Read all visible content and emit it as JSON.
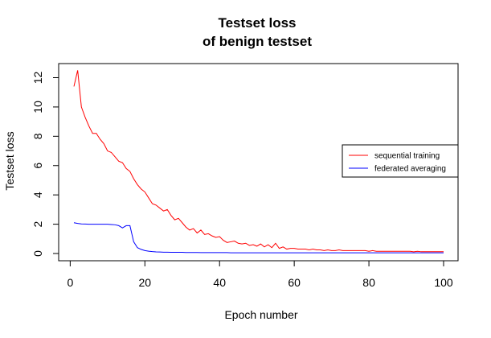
{
  "chart_data": {
    "type": "line",
    "title": "Testset loss",
    "subtitle": "of benign testset",
    "xlabel": "Epoch number",
    "ylabel": "Testset loss",
    "xlim": [
      0,
      100
    ],
    "ylim": [
      0,
      12.5
    ],
    "xticks": [
      "0",
      "20",
      "40",
      "60",
      "80",
      "100"
    ],
    "yticks": [
      "0",
      "2",
      "4",
      "6",
      "8",
      "10",
      "12"
    ],
    "grid": false,
    "legend_position": "right",
    "series": [
      {
        "name": "sequential training",
        "color": "#ff0000",
        "x": [
          1,
          2,
          3,
          4,
          5,
          6,
          7,
          8,
          9,
          10,
          11,
          12,
          13,
          14,
          15,
          16,
          17,
          18,
          19,
          20,
          21,
          22,
          23,
          24,
          25,
          26,
          27,
          28,
          29,
          30,
          31,
          32,
          33,
          34,
          35,
          36,
          37,
          38,
          39,
          40,
          41,
          42,
          43,
          44,
          45,
          46,
          47,
          48,
          49,
          50,
          51,
          52,
          53,
          54,
          55,
          56,
          57,
          58,
          59,
          60,
          61,
          62,
          63,
          64,
          65,
          66,
          67,
          68,
          69,
          70,
          71,
          72,
          73,
          74,
          75,
          76,
          77,
          78,
          79,
          80,
          81,
          82,
          83,
          84,
          85,
          86,
          87,
          88,
          89,
          90,
          91,
          92,
          93,
          94,
          95,
          96,
          97,
          98,
          99,
          100
        ],
        "values": [
          11.4,
          12.5,
          10.0,
          9.3,
          8.7,
          8.2,
          8.2,
          7.8,
          7.5,
          7.0,
          6.9,
          6.6,
          6.3,
          6.2,
          5.8,
          5.6,
          5.1,
          4.7,
          4.4,
          4.2,
          3.8,
          3.4,
          3.3,
          3.1,
          2.9,
          3.0,
          2.6,
          2.3,
          2.4,
          2.1,
          1.8,
          1.6,
          1.7,
          1.4,
          1.6,
          1.3,
          1.35,
          1.2,
          1.1,
          1.15,
          0.9,
          0.75,
          0.8,
          0.85,
          0.7,
          0.65,
          0.7,
          0.55,
          0.6,
          0.5,
          0.65,
          0.45,
          0.6,
          0.4,
          0.7,
          0.35,
          0.45,
          0.3,
          0.35,
          0.35,
          0.3,
          0.3,
          0.3,
          0.25,
          0.3,
          0.25,
          0.25,
          0.2,
          0.25,
          0.2,
          0.2,
          0.25,
          0.2,
          0.2,
          0.2,
          0.2,
          0.2,
          0.2,
          0.2,
          0.15,
          0.2,
          0.15,
          0.15,
          0.15,
          0.15,
          0.15,
          0.15,
          0.15,
          0.15,
          0.15,
          0.15,
          0.12,
          0.15,
          0.12,
          0.12,
          0.12,
          0.12,
          0.12,
          0.12,
          0.12
        ]
      },
      {
        "name": "federated averaging",
        "color": "#0000ff",
        "x": [
          1,
          2,
          3,
          4,
          5,
          6,
          7,
          8,
          9,
          10,
          11,
          12,
          13,
          14,
          15,
          16,
          17,
          18,
          19,
          20,
          21,
          22,
          23,
          24,
          25,
          26,
          27,
          28,
          29,
          30,
          31,
          32,
          33,
          34,
          35,
          36,
          37,
          38,
          39,
          40,
          41,
          42,
          43,
          44,
          45,
          46,
          47,
          48,
          49,
          50,
          51,
          52,
          53,
          54,
          55,
          56,
          57,
          58,
          59,
          60,
          61,
          62,
          63,
          64,
          65,
          66,
          67,
          68,
          69,
          70,
          71,
          72,
          73,
          74,
          75,
          76,
          77,
          78,
          79,
          80,
          81,
          82,
          83,
          84,
          85,
          86,
          87,
          88,
          89,
          90,
          91,
          92,
          93,
          94,
          95,
          96,
          97,
          98,
          99,
          100
        ],
        "values": [
          2.1,
          2.05,
          2.02,
          2.01,
          2.0,
          2.0,
          2.0,
          2.0,
          2.0,
          2.0,
          1.98,
          1.96,
          1.9,
          1.75,
          1.9,
          1.9,
          0.8,
          0.4,
          0.28,
          0.2,
          0.16,
          0.13,
          0.11,
          0.1,
          0.09,
          0.09,
          0.08,
          0.08,
          0.08,
          0.08,
          0.07,
          0.07,
          0.07,
          0.07,
          0.06,
          0.06,
          0.06,
          0.06,
          0.06,
          0.06,
          0.06,
          0.06,
          0.05,
          0.05,
          0.05,
          0.05,
          0.05,
          0.05,
          0.05,
          0.05,
          0.05,
          0.05,
          0.05,
          0.05,
          0.05,
          0.05,
          0.05,
          0.05,
          0.05,
          0.05,
          0.05,
          0.05,
          0.05,
          0.05,
          0.05,
          0.05,
          0.05,
          0.05,
          0.05,
          0.05,
          0.05,
          0.05,
          0.05,
          0.05,
          0.05,
          0.05,
          0.05,
          0.05,
          0.05,
          0.05,
          0.05,
          0.05,
          0.05,
          0.05,
          0.05,
          0.05,
          0.05,
          0.05,
          0.05,
          0.05,
          0.05,
          0.05,
          0.05,
          0.05,
          0.05,
          0.05,
          0.05,
          0.05,
          0.05,
          0.05
        ]
      }
    ]
  }
}
